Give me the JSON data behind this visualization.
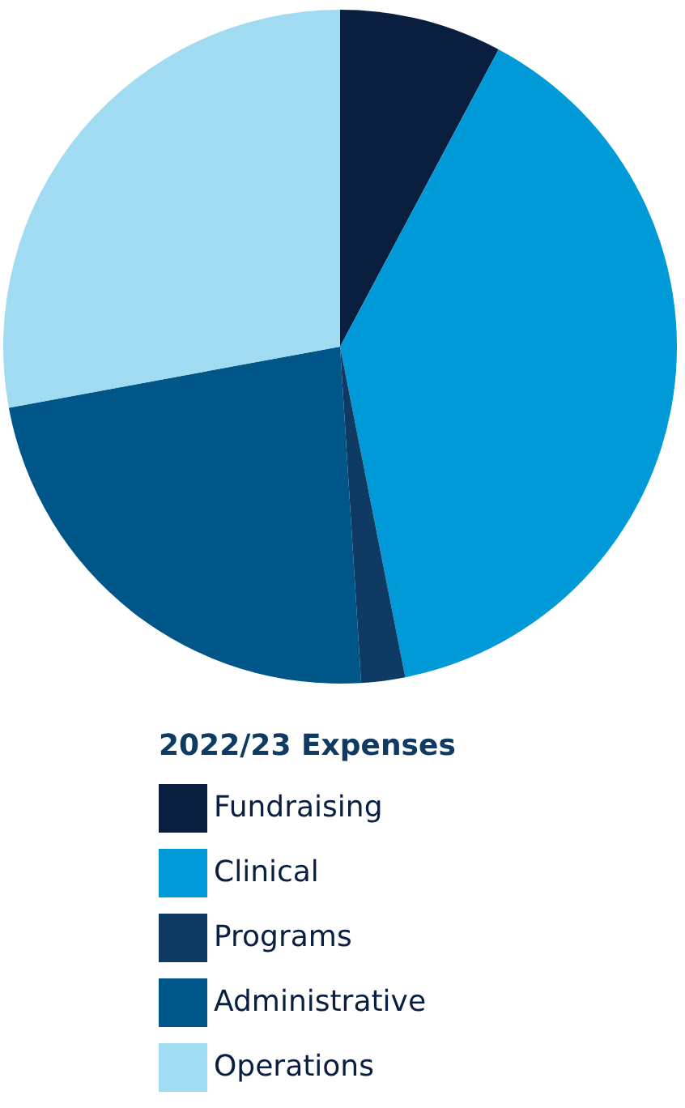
{
  "chart_data": {
    "type": "pie",
    "legend_title": "2022/23 Expenses",
    "categories": [
      "Fundraising",
      "Clinical",
      "Programs",
      "Administrative",
      "Operations"
    ],
    "values": [
      7.8,
      39.1,
      2.1,
      23.1,
      27.9
    ],
    "colors": [
      "#0a1f40",
      "#009ad8",
      "#0f3a63",
      "#005689",
      "#a1dbf2"
    ],
    "legend": "bottom"
  }
}
